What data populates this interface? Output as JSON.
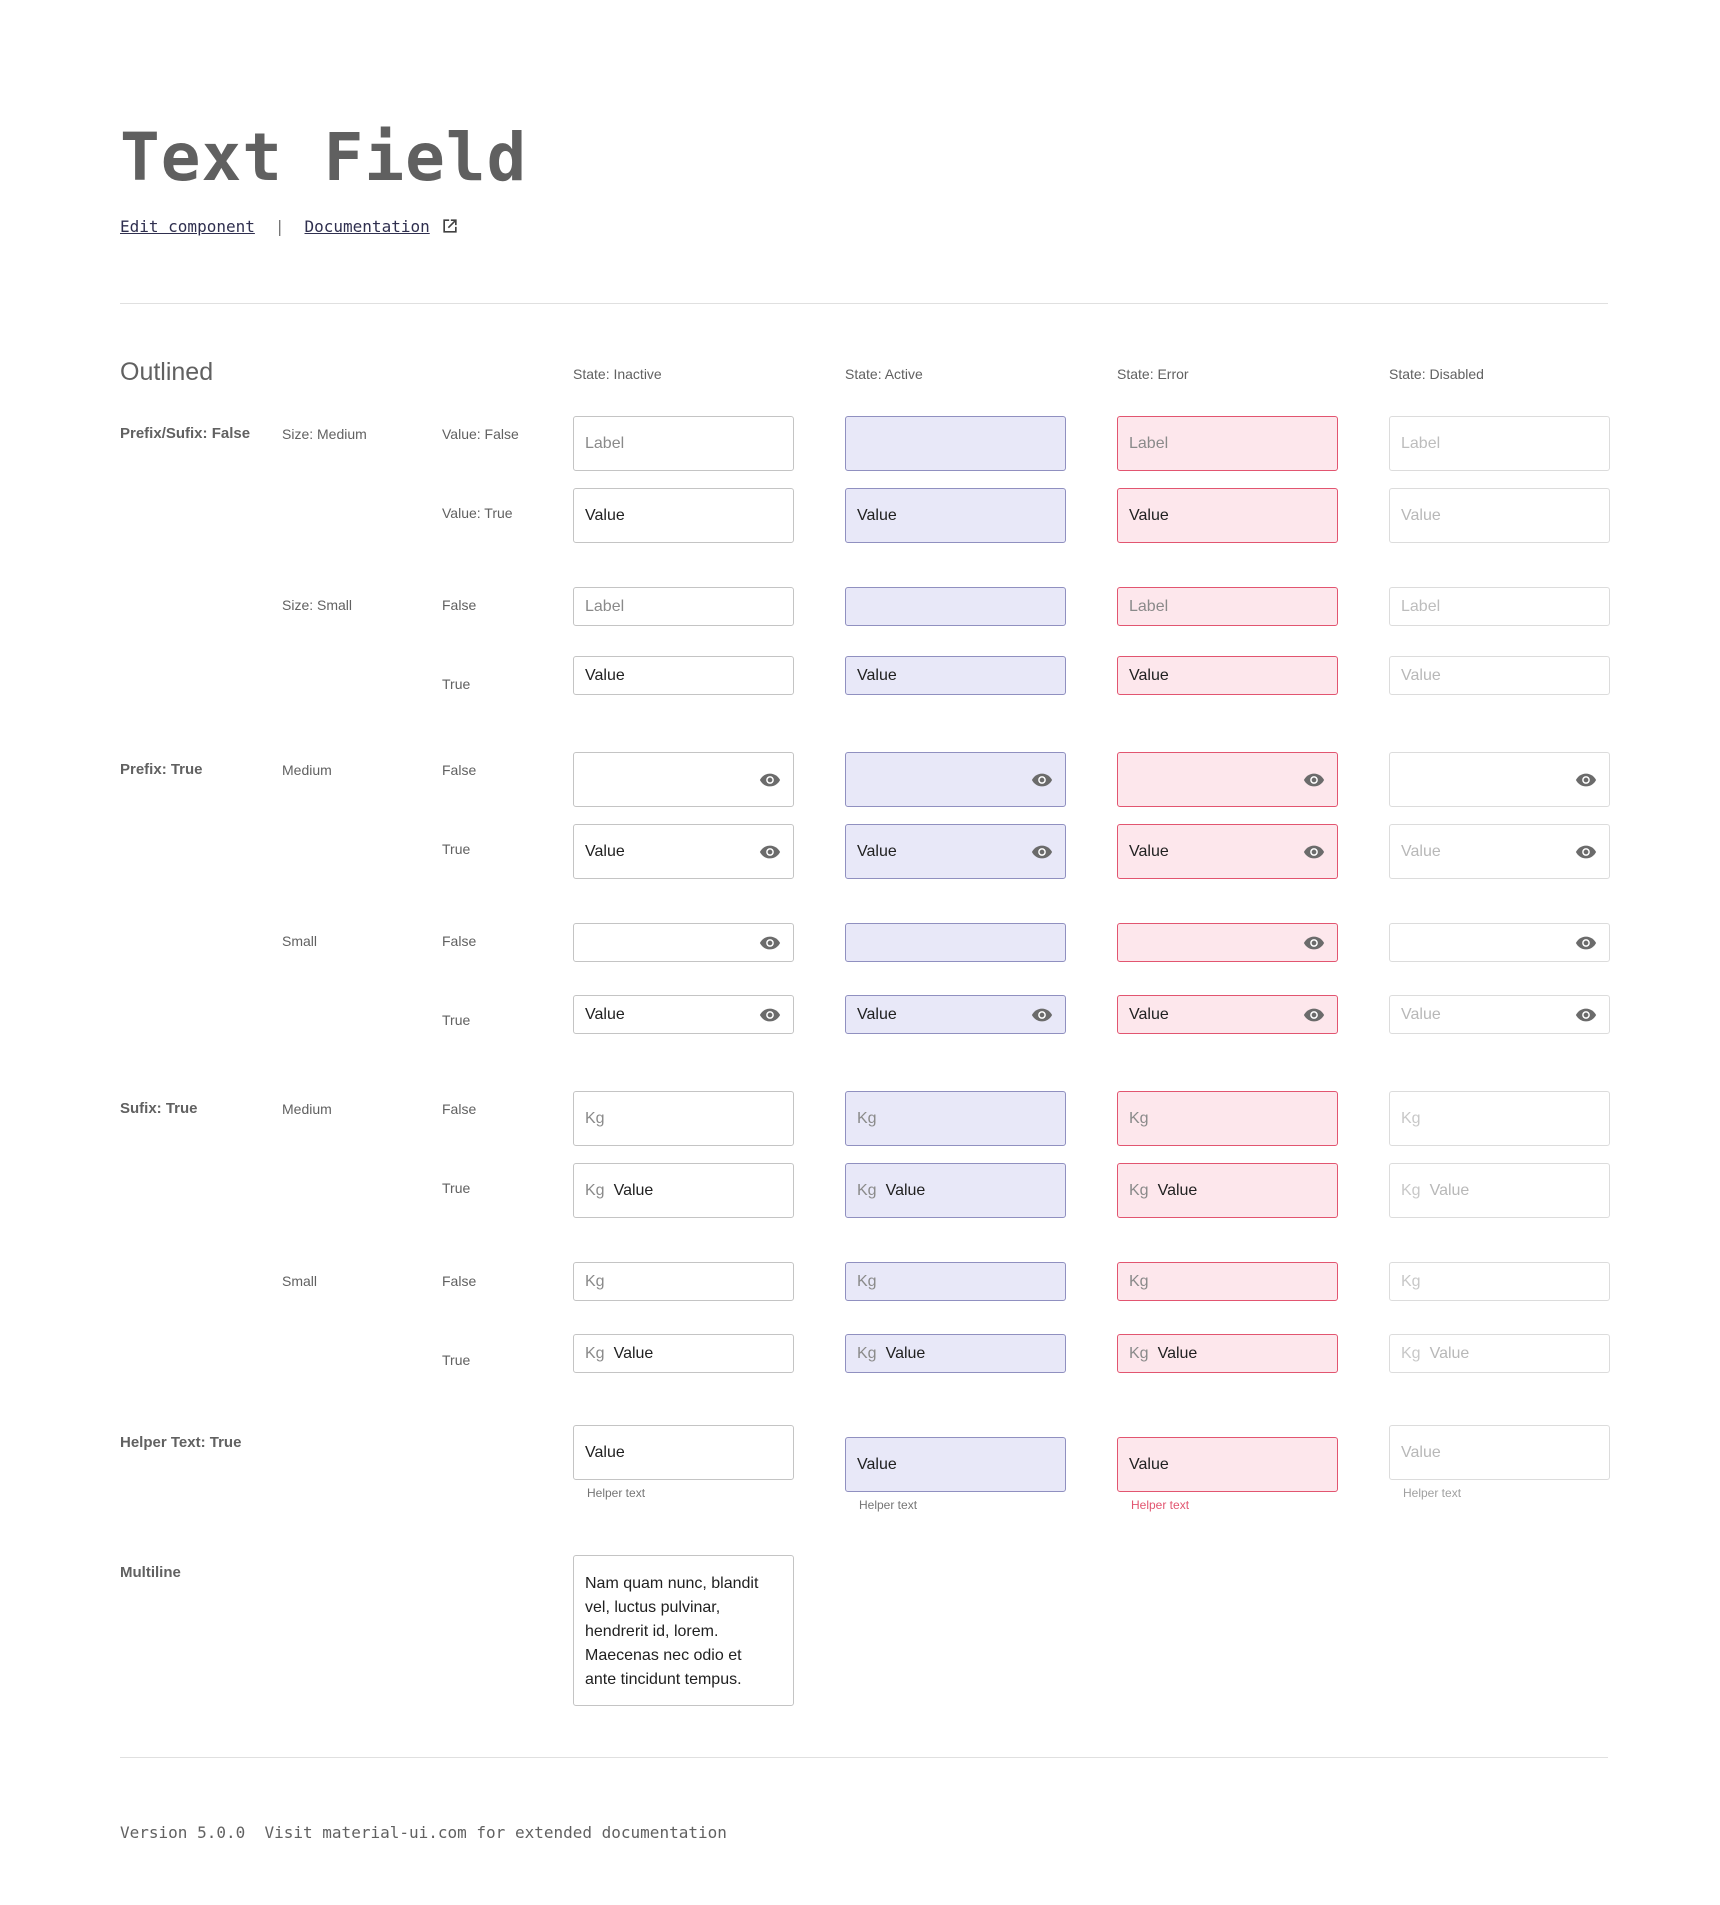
{
  "header": {
    "title": "Text Field",
    "edit_link": "Edit component",
    "separator": "|",
    "doc_link": "Documentation"
  },
  "section": {
    "title": "Outlined"
  },
  "columns": [
    "State: Inactive",
    "State: Active",
    "State: Error",
    "State: Disabled"
  ],
  "groups": {
    "prefix_sufix_false": "Prefix/Sufix: False",
    "prefix_true": "Prefix: True",
    "sufix_true": "Sufix: True",
    "helper_true": "Helper Text: True",
    "multiline": "Multiline"
  },
  "sizes": {
    "size_medium": "Size: Medium",
    "size_small": "Size: Small",
    "medium": "Medium",
    "small": "Small"
  },
  "values_labels": {
    "value_false": "Value: False",
    "value_true": "Value: True",
    "false": "False",
    "true": "True"
  },
  "field": {
    "label": "Label",
    "value": "Value",
    "prefix": "Kg",
    "helper": "Helper text",
    "multiline_text": "Nam quam nunc, blandit\nvel, luctus pulvinar,\nhendrerit id, lorem.\nMaecenas nec odio et\nante tincidunt tempus."
  },
  "icons": {
    "external_link": "external-link-icon",
    "suffix": "eye-icon"
  },
  "colors": {
    "active_bg": "#e8e8f8",
    "active_border": "#9090c0",
    "error_bg": "#fde7ec",
    "error_border": "#e25570"
  },
  "footer": {
    "text": "Version 5.0.0  Visit material-ui.com for extended documentation"
  }
}
